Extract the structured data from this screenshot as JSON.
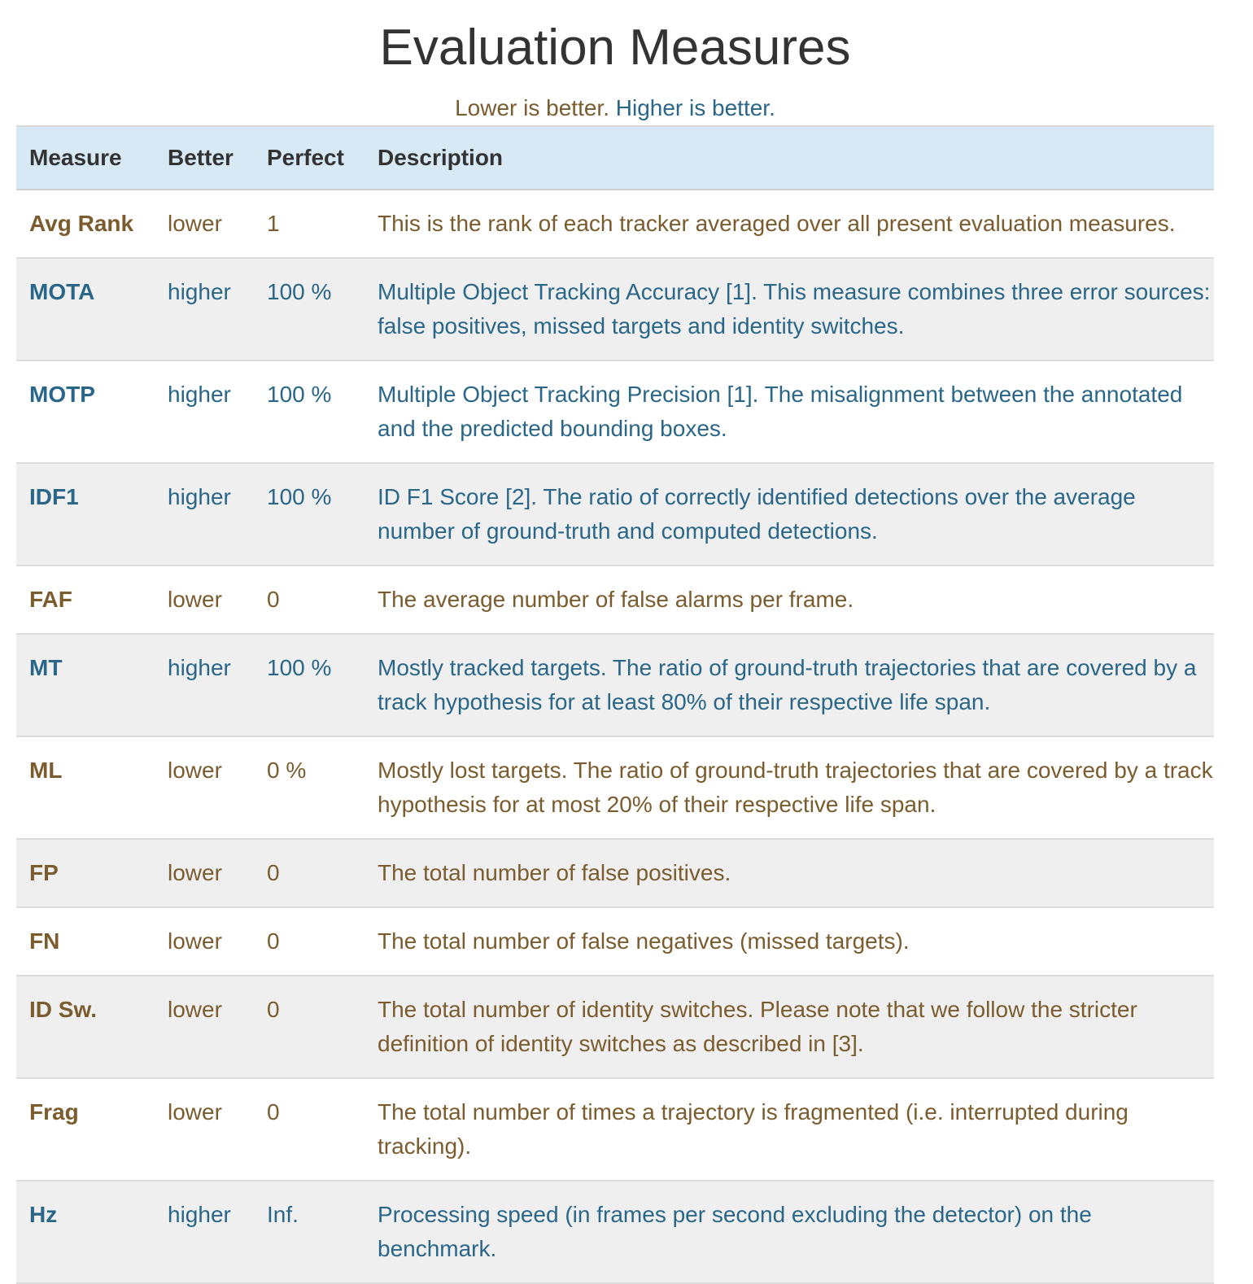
{
  "page": {
    "title": "Evaluation Measures",
    "legend": {
      "lower": "Lower is better.",
      "higher": "Higher is better."
    }
  },
  "colors": {
    "lower": "#7a5c2e",
    "higher": "#2a6688",
    "header_bg": "#d6e9f5",
    "stripe_bg": "#efefef"
  },
  "table": {
    "headers": {
      "measure": "Measure",
      "better": "Better",
      "perfect": "Perfect",
      "description": "Description"
    },
    "rows": [
      {
        "measure": "Avg Rank",
        "better": "lower",
        "perfect": "1",
        "description": "This is the rank of each tracker averaged over all present evaluation measures."
      },
      {
        "measure": "MOTA",
        "better": "higher",
        "perfect": "100 %",
        "description": "Multiple Object Tracking Accuracy [1]. This measure combines three error sources: false positives, missed targets and identity switches."
      },
      {
        "measure": "MOTP",
        "better": "higher",
        "perfect": "100 %",
        "description": "Multiple Object Tracking Precision [1]. The misalignment between the annotated and the predicted bounding boxes."
      },
      {
        "measure": "IDF1",
        "better": "higher",
        "perfect": "100 %",
        "description": "ID F1 Score [2]. The ratio of correctly identified detections over the average number of ground-truth and computed detections."
      },
      {
        "measure": "FAF",
        "better": "lower",
        "perfect": "0",
        "description": "The average number of false alarms per frame."
      },
      {
        "measure": "MT",
        "better": "higher",
        "perfect": "100 %",
        "description": "Mostly tracked targets. The ratio of ground-truth trajectories that are covered by a track hypothesis for at least 80% of their respective life span."
      },
      {
        "measure": "ML",
        "better": "lower",
        "perfect": "0 %",
        "description": "Mostly lost targets. The ratio of ground-truth trajectories that are covered by a track hypothesis for at most 20% of their respective life span."
      },
      {
        "measure": "FP",
        "better": "lower",
        "perfect": "0",
        "description": "The total number of false positives."
      },
      {
        "measure": "FN",
        "better": "lower",
        "perfect": "0",
        "description": "The total number of false negatives (missed targets)."
      },
      {
        "measure": "ID Sw.",
        "better": "lower",
        "perfect": "0",
        "description": "The total number of identity switches. Please note that we follow the stricter definition of identity switches as described in [3]."
      },
      {
        "measure": "Frag",
        "better": "lower",
        "perfect": "0",
        "description": "The total number of times a trajectory is fragmented (i.e. interrupted during tracking)."
      },
      {
        "measure": "Hz",
        "better": "higher",
        "perfect": "Inf.",
        "description": "Processing speed (in frames per second excluding the detector) on the benchmark."
      }
    ]
  }
}
